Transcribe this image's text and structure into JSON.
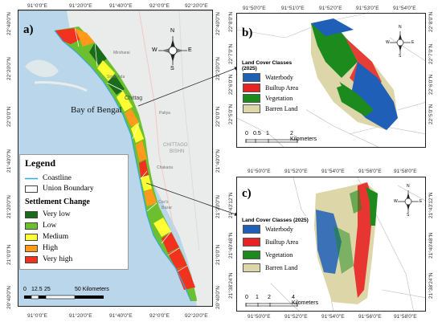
{
  "panel_a": {
    "label": "a)",
    "top_coords": [
      "91°0'0\"E",
      "91°20'0\"E",
      "91°40'0\"E",
      "92°0'0\"E",
      "92°20'0\"E"
    ],
    "bottom_coords": [
      "91°0'0\"E",
      "91°20'0\"E",
      "91°40'0\"E",
      "92°0'0\"E",
      "92°20'0\"E"
    ],
    "right_coords": [
      "22°40'0\"N",
      "22°20'0\"N",
      "22°0'0\"N",
      "21°40'0\"N",
      "21°20'0\"N",
      "21°0'0\"N",
      "20°40'0\"N"
    ],
    "left_coords": [
      "22°40'0\"N",
      "22°20'0\"N",
      "22°0'0\"N",
      "21°40'0\"N",
      "21°20'0\"N",
      "21°0'0\"N",
      "20°40'0\"N"
    ],
    "bay_label": "Bay of Bengal",
    "place_labels": {
      "chittagong": "Chittag",
      "chittagong_bishn": "CHITTAGO",
      "bishn": "BISHN",
      "patiya": "Patiya",
      "chakaria": "Chakaria",
      "cox": "Cox's",
      "bazar": "Bazar",
      "mirsharai": "Mirsharai",
      "sitakunda": "Sitakunda"
    },
    "scale": {
      "ticks": [
        "0",
        "12.5",
        "25",
        "50 Kilometers"
      ]
    },
    "legend": {
      "title": "Legend",
      "coastline": "Coastline",
      "union_boundary": "Union Boundary",
      "settlement_title": "Settlement Change",
      "classes": [
        {
          "label": "Very low",
          "color": "#1a6b1a"
        },
        {
          "label": "Low",
          "color": "#6cc02f"
        },
        {
          "label": "Medium",
          "color": "#ffff33"
        },
        {
          "label": "High",
          "color": "#ff9a1a"
        },
        {
          "label": "Very high",
          "color": "#f0321e"
        }
      ]
    },
    "compass": {
      "n": "N",
      "s": "S",
      "e": "E",
      "w": "W"
    }
  },
  "panel_b": {
    "label": "b)",
    "top_coords": [
      "91°50'0\"E",
      "91°51'0\"E",
      "91°52'0\"E",
      "91°53'0\"E",
      "91°54'0\"E"
    ],
    "right_coords": [
      "22°8'0\"N",
      "22°7'0\"N",
      "22°6'0\"N",
      "22°5'0\"N"
    ],
    "left_coords": [
      "22°8'0\"N",
      "22°7'0\"N",
      "22°6'0\"N",
      "22°5'0\"N"
    ],
    "legend": {
      "title": "Land Cover Classes (2025)",
      "classes": [
        {
          "label": "Waterbody",
          "color": "#1f5fb8"
        },
        {
          "label": "Builtup Area",
          "color": "#e82323"
        },
        {
          "label": "Vegetation",
          "color": "#1c8a1c"
        },
        {
          "label": "Barren Land",
          "color": "#dcd6a8"
        }
      ]
    },
    "scale": {
      "ticks": [
        "0",
        "0.5",
        "1",
        "2 Kilometers"
      ]
    },
    "compass": {
      "n": "N",
      "s": "S",
      "e": "E",
      "w": "W"
    }
  },
  "panel_c": {
    "label": "c)",
    "top_coords": [
      "91°50'0\"E",
      "91°52'0\"E",
      "91°54'0\"E",
      "91°56'0\"E",
      "91°58'0\"E"
    ],
    "bottom_coords": [
      "91°50'0\"E",
      "91°52'0\"E",
      "91°54'0\"E",
      "91°56'0\"E",
      "91°58'0\"E"
    ],
    "right_coords": [
      "21°43'12\"N",
      "21°40'48\"N",
      "21°38'24\"N"
    ],
    "left_coords": [
      "21°43'12\"N",
      "21°40'48\"N",
      "21°38'24\"N"
    ],
    "legend": {
      "title": "Land Cover Classes (2025)",
      "classes": [
        {
          "label": "Waterbody",
          "color": "#1f5fb8"
        },
        {
          "label": "Builtup Area",
          "color": "#e82323"
        },
        {
          "label": "Vegetation",
          "color": "#1c8a1c"
        },
        {
          "label": "Barren Land",
          "color": "#dcd6a8"
        }
      ]
    },
    "scale": {
      "ticks": [
        "0",
        "1",
        "2",
        "4 Kilometers"
      ]
    },
    "compass": {
      "n": "N",
      "s": "S",
      "e": "E",
      "w": "W"
    }
  },
  "colors": {
    "sea": "#b9d6ea",
    "land": "#e9ecea",
    "coastline": "#33a9d6",
    "waterbody": "#1f5fb8",
    "builtup": "#e82323",
    "vegetation": "#1c8a1c",
    "barren": "#dcd6a8"
  }
}
